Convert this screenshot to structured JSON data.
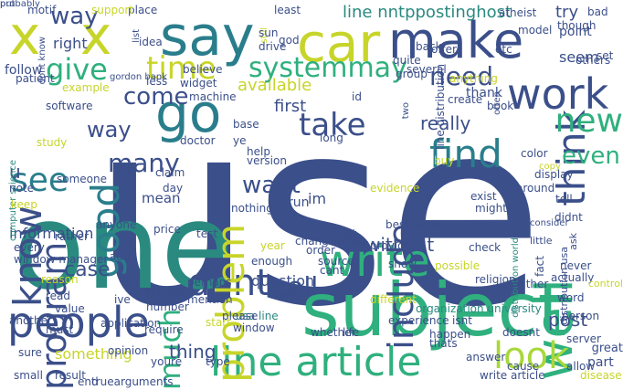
{
  "words": [
    {
      "text": "use",
      "color": "#3b4f8a"
    },
    {
      "text": "one",
      "color": "#2a8a80"
    },
    {
      "text": "subject",
      "color": "#2fb07e"
    },
    {
      "text": "x",
      "color": "#c7d52a"
    },
    {
      "text": "x",
      "color": "#c7d52a"
    },
    {
      "text": "say",
      "color": "#2a7e8c"
    },
    {
      "text": "car",
      "color": "#c7d52a"
    },
    {
      "text": "make",
      "color": "#3b4f8a"
    },
    {
      "text": "think",
      "color": "#3b4f8a"
    },
    {
      "text": "people",
      "color": "#3b4f8a"
    },
    {
      "text": "line article",
      "color": "#2fb07e"
    },
    {
      "text": "write",
      "color": "#2fb07e"
    },
    {
      "text": "know",
      "color": "#3b4f8a"
    },
    {
      "text": "go",
      "color": "#2a7e8c"
    },
    {
      "text": "work",
      "color": "#3b4f8a"
    },
    {
      "text": "well",
      "color": "#2fb07e"
    },
    {
      "text": "dont",
      "color": "#3b4f8a"
    },
    {
      "text": "time",
      "color": "#c7d52a"
    },
    {
      "text": "systemmay",
      "color": "#2fb07e"
    },
    {
      "text": "give",
      "color": "#2fb07e"
    },
    {
      "text": "good",
      "color": "#2a7e8c"
    },
    {
      "text": "see",
      "color": "#2a7e8c"
    },
    {
      "text": "problem",
      "color": "#c7d52a"
    },
    {
      "text": "include",
      "color": "#3b4f8a"
    },
    {
      "text": "find",
      "color": "#2a7e8c"
    },
    {
      "text": "look",
      "color": "#a8d83a"
    },
    {
      "text": "new",
      "color": "#2fb07e"
    },
    {
      "text": "much",
      "color": "#2fb07e"
    },
    {
      "text": "program",
      "color": "#3b4f8a"
    },
    {
      "text": "call",
      "color": "#3b4f8a"
    },
    {
      "text": "many",
      "color": "#3b4f8a"
    },
    {
      "text": "want",
      "color": "#3b4f8a"
    },
    {
      "text": "take",
      "color": "#3b4f8a"
    },
    {
      "text": "even",
      "color": "#2fb07e"
    },
    {
      "text": "need",
      "color": "#3b4f8a"
    },
    {
      "text": "come",
      "color": "#3b4f8a"
    },
    {
      "text": "way",
      "color": "#3b4f8a"
    },
    {
      "text": "line nntppostinghost",
      "color": "#2a8a80"
    },
    {
      "text": "way",
      "color": "#3b4f8a"
    },
    {
      "text": "post",
      "color": "#3b4f8a"
    },
    {
      "text": "thing",
      "color": "#3b4f8a"
    },
    {
      "text": "something",
      "color": "#c7d52a"
    },
    {
      "text": "really",
      "color": "#3b4f8a"
    },
    {
      "text": "question",
      "color": "#3b4f8a"
    },
    {
      "text": "without",
      "color": "#3b4f8a"
    },
    {
      "text": "available",
      "color": "#c7d52a"
    },
    {
      "text": "first",
      "color": "#3b4f8a"
    },
    {
      "text": "try",
      "color": "#3b4f8a"
    },
    {
      "text": "seem",
      "color": "#3b4f8a"
    },
    {
      "text": "u",
      "color": "#3b4f8a"
    },
    {
      "text": "right",
      "color": "#3b4f8a"
    },
    {
      "text": "follow",
      "color": "#3b4f8a"
    },
    {
      "text": "information",
      "color": "#3b4f8a"
    },
    {
      "text": "case",
      "color": "#3b4f8a"
    },
    {
      "text": "run",
      "color": "#3b4f8a"
    },
    {
      "text": "im",
      "color": "#3b4f8a"
    },
    {
      "text": "mean",
      "color": "#3b4f8a"
    },
    {
      "text": "point",
      "color": "#3b4f8a"
    },
    {
      "text": "part",
      "color": "#3b4f8a"
    },
    {
      "text": "thank",
      "color": "#3b4f8a"
    },
    {
      "text": "organization university",
      "color": "#2a8a80"
    },
    {
      "text": "usa line",
      "color": "#2a8a80"
    },
    {
      "text": "truearguments",
      "color": "#3b4f8a"
    },
    {
      "text": "application",
      "color": "#3b4f8a"
    },
    {
      "text": "window",
      "color": "#3b4f8a"
    },
    {
      "text": "life",
      "color": "#3b4f8a"
    },
    {
      "text": "distribution world",
      "color": "#2a8a80"
    },
    {
      "text": "line distribution",
      "color": "#3b4f8a"
    },
    {
      "text": "distribution usa",
      "color": "#3b4f8a"
    },
    {
      "text": "computer science",
      "color": "#2a8a80"
    },
    {
      "text": "gordon bank",
      "color": "#3b4f8a"
    },
    {
      "text": "dont know",
      "color": "#3b4f8a"
    },
    {
      "text": "ask",
      "color": "#3b4f8a"
    },
    {
      "text": "either",
      "color": "#3b4f8a"
    },
    {
      "text": "actually",
      "color": "#3b4f8a"
    },
    {
      "text": "little",
      "color": "#3b4f8a"
    },
    {
      "text": "consider",
      "color": "#3b4f8a"
    },
    {
      "text": "different",
      "color": "#c7d52a"
    },
    {
      "text": "religion",
      "color": "#3b4f8a"
    },
    {
      "text": "possible",
      "color": "#c7d52a"
    },
    {
      "text": "control",
      "color": "#c7d52a"
    },
    {
      "text": "great",
      "color": "#3b4f8a"
    },
    {
      "text": "please",
      "color": "#3b4f8a"
    },
    {
      "text": "require",
      "color": "#3b4f8a"
    },
    {
      "text": "start",
      "color": "#c7d52a"
    },
    {
      "text": "human",
      "color": "#3b4f8a"
    },
    {
      "text": "number",
      "color": "#3b4f8a"
    },
    {
      "text": "mention",
      "color": "#3b4f8a"
    },
    {
      "text": "perhaps",
      "color": "#3b4f8a"
    },
    {
      "text": "test",
      "color": "#3b4f8a"
    },
    {
      "text": "enough",
      "color": "#3b4f8a"
    },
    {
      "text": "year",
      "color": "#c7d52a"
    },
    {
      "text": "change",
      "color": "#3b4f8a"
    },
    {
      "text": "name",
      "color": "#3b4f8a"
    },
    {
      "text": "order",
      "color": "#3b4f8a"
    },
    {
      "text": "source",
      "color": "#3b4f8a"
    },
    {
      "text": "cant",
      "color": "#3b4f8a"
    },
    {
      "text": "provide",
      "color": "#3b4f8a"
    },
    {
      "text": "show",
      "color": "#3b4f8a"
    },
    {
      "text": "check",
      "color": "#3b4f8a"
    },
    {
      "text": "best",
      "color": "#3b4f8a"
    },
    {
      "text": "course",
      "color": "#3b4f8a"
    },
    {
      "text": "lot",
      "color": "#3b4f8a"
    },
    {
      "text": "tell",
      "color": "#3b4f8a"
    },
    {
      "text": "didnt",
      "color": "#3b4f8a"
    },
    {
      "text": "might",
      "color": "#3b4f8a"
    },
    {
      "text": "exist",
      "color": "#3b4f8a"
    },
    {
      "text": "around",
      "color": "#3b4f8a"
    },
    {
      "text": "color",
      "color": "#3b4f8a"
    },
    {
      "text": "display",
      "color": "#3b4f8a"
    },
    {
      "text": "copy",
      "color": "#c7d52a"
    },
    {
      "text": "often",
      "color": "#3b4f8a"
    },
    {
      "text": "book",
      "color": "#3b4f8a"
    },
    {
      "text": "create",
      "color": "#3b4f8a"
    },
    {
      "text": "group",
      "color": "#3b4f8a"
    },
    {
      "text": "several",
      "color": "#3b4f8a"
    },
    {
      "text": "quite",
      "color": "#3b4f8a"
    },
    {
      "text": "back",
      "color": "#3b4f8a"
    },
    {
      "text": "offer",
      "color": "#3b4f8a"
    },
    {
      "text": "etc",
      "color": "#3b4f8a"
    },
    {
      "text": "atheist",
      "color": "#3b4f8a"
    },
    {
      "text": "model",
      "color": "#3b4f8a"
    },
    {
      "text": "though",
      "color": "#3b4f8a"
    },
    {
      "text": "bad",
      "color": "#3b4f8a"
    },
    {
      "text": "set",
      "color": "#3b4f8a"
    },
    {
      "text": "others",
      "color": "#3b4f8a"
    },
    {
      "text": "least",
      "color": "#3b4f8a"
    },
    {
      "text": "god",
      "color": "#3b4f8a"
    },
    {
      "text": "still",
      "color": "#c7d52a"
    },
    {
      "text": "drive",
      "color": "#3b4f8a"
    },
    {
      "text": "sun",
      "color": "#3b4f8a"
    },
    {
      "text": "place",
      "color": "#3b4f8a"
    },
    {
      "text": "idea",
      "color": "#3b4f8a"
    },
    {
      "text": "list",
      "color": "#3b4f8a"
    },
    {
      "text": "support",
      "color": "#c7d52a"
    },
    {
      "text": "motif",
      "color": "#3b4f8a"
    },
    {
      "text": "patient",
      "color": "#3b4f8a"
    },
    {
      "text": "believe",
      "color": "#3b4f8a"
    },
    {
      "text": "widget",
      "color": "#3b4f8a"
    },
    {
      "text": "less",
      "color": "#3b4f8a"
    },
    {
      "text": "example",
      "color": "#c7d52a"
    },
    {
      "text": "software",
      "color": "#3b4f8a"
    },
    {
      "text": "machine",
      "color": "#3b4f8a"
    },
    {
      "text": "base",
      "color": "#3b4f8a"
    },
    {
      "text": "ye",
      "color": "#3b4f8a"
    },
    {
      "text": "doctor",
      "color": "#3b4f8a"
    },
    {
      "text": "long",
      "color": "#3b4f8a"
    },
    {
      "text": "help",
      "color": "#3b4f8a"
    },
    {
      "text": "version",
      "color": "#3b4f8a"
    },
    {
      "text": "claim",
      "color": "#3b4f8a"
    },
    {
      "text": "day",
      "color": "#3b4f8a"
    },
    {
      "text": "price",
      "color": "#3b4f8a"
    },
    {
      "text": "nothing",
      "color": "#3b4f8a"
    },
    {
      "text": "study",
      "color": "#c7d52a"
    },
    {
      "text": "note",
      "color": "#3b4f8a"
    },
    {
      "text": "someone",
      "color": "#3b4f8a"
    },
    {
      "text": "keep",
      "color": "#c7d52a"
    },
    {
      "text": "anyone",
      "color": "#3b4f8a"
    },
    {
      "text": "every",
      "color": "#3b4f8a"
    },
    {
      "text": "rather",
      "color": "#3b4f8a"
    },
    {
      "text": "add",
      "color": "#3b4f8a"
    },
    {
      "text": "window manager",
      "color": "#3b4f8a"
    },
    {
      "text": "reason",
      "color": "#c7d52a"
    },
    {
      "text": "read",
      "color": "#3b4f8a"
    },
    {
      "text": "value",
      "color": "#3b4f8a"
    },
    {
      "text": "ive",
      "color": "#3b4f8a"
    },
    {
      "text": "another",
      "color": "#3b4f8a"
    },
    {
      "text": "must",
      "color": "#3b4f8a"
    },
    {
      "text": "sure",
      "color": "#3b4f8a"
    },
    {
      "text": "small",
      "color": "#3b4f8a"
    },
    {
      "text": "result",
      "color": "#3b4f8a"
    },
    {
      "text": "end",
      "color": "#3b4f8a"
    },
    {
      "text": "opinion",
      "color": "#3b4f8a"
    },
    {
      "text": "youre",
      "color": "#3b4f8a"
    },
    {
      "text": "type",
      "color": "#3b4f8a"
    },
    {
      "text": "sell",
      "color": "#3b4f8a"
    },
    {
      "text": "whether",
      "color": "#3b4f8a"
    },
    {
      "text": "experience",
      "color": "#3b4f8a"
    },
    {
      "text": "thats",
      "color": "#3b4f8a"
    },
    {
      "text": "happen",
      "color": "#3b4f8a"
    },
    {
      "text": "isnt",
      "color": "#3b4f8a"
    },
    {
      "text": "doesnt",
      "color": "#3b4f8a"
    },
    {
      "text": "answer",
      "color": "#3b4f8a"
    },
    {
      "text": "write article",
      "color": "#3b4f8a"
    },
    {
      "text": "cause",
      "color": "#3b4f8a"
    },
    {
      "text": "word",
      "color": "#3b4f8a"
    },
    {
      "text": "person",
      "color": "#3b4f8a"
    },
    {
      "text": "server",
      "color": "#3b4f8a"
    },
    {
      "text": "allow",
      "color": "#3b4f8a"
    },
    {
      "text": "disease",
      "color": "#c7d52a"
    },
    {
      "text": "fact",
      "color": "#3b4f8a"
    },
    {
      "text": "never",
      "color": "#3b4f8a"
    },
    {
      "text": "two",
      "color": "#3b4f8a"
    },
    {
      "text": "id",
      "color": "#3b4f8a"
    },
    {
      "text": "evidence",
      "color": "#c7d52a"
    },
    {
      "text": "anything",
      "color": "#c7d52a"
    },
    {
      "text": "buy",
      "color": "#c7d52a"
    },
    {
      "text": "put",
      "color": "#3b4f8a"
    },
    {
      "text": "probably",
      "color": "#3b4f8a"
    }
  ]
}
